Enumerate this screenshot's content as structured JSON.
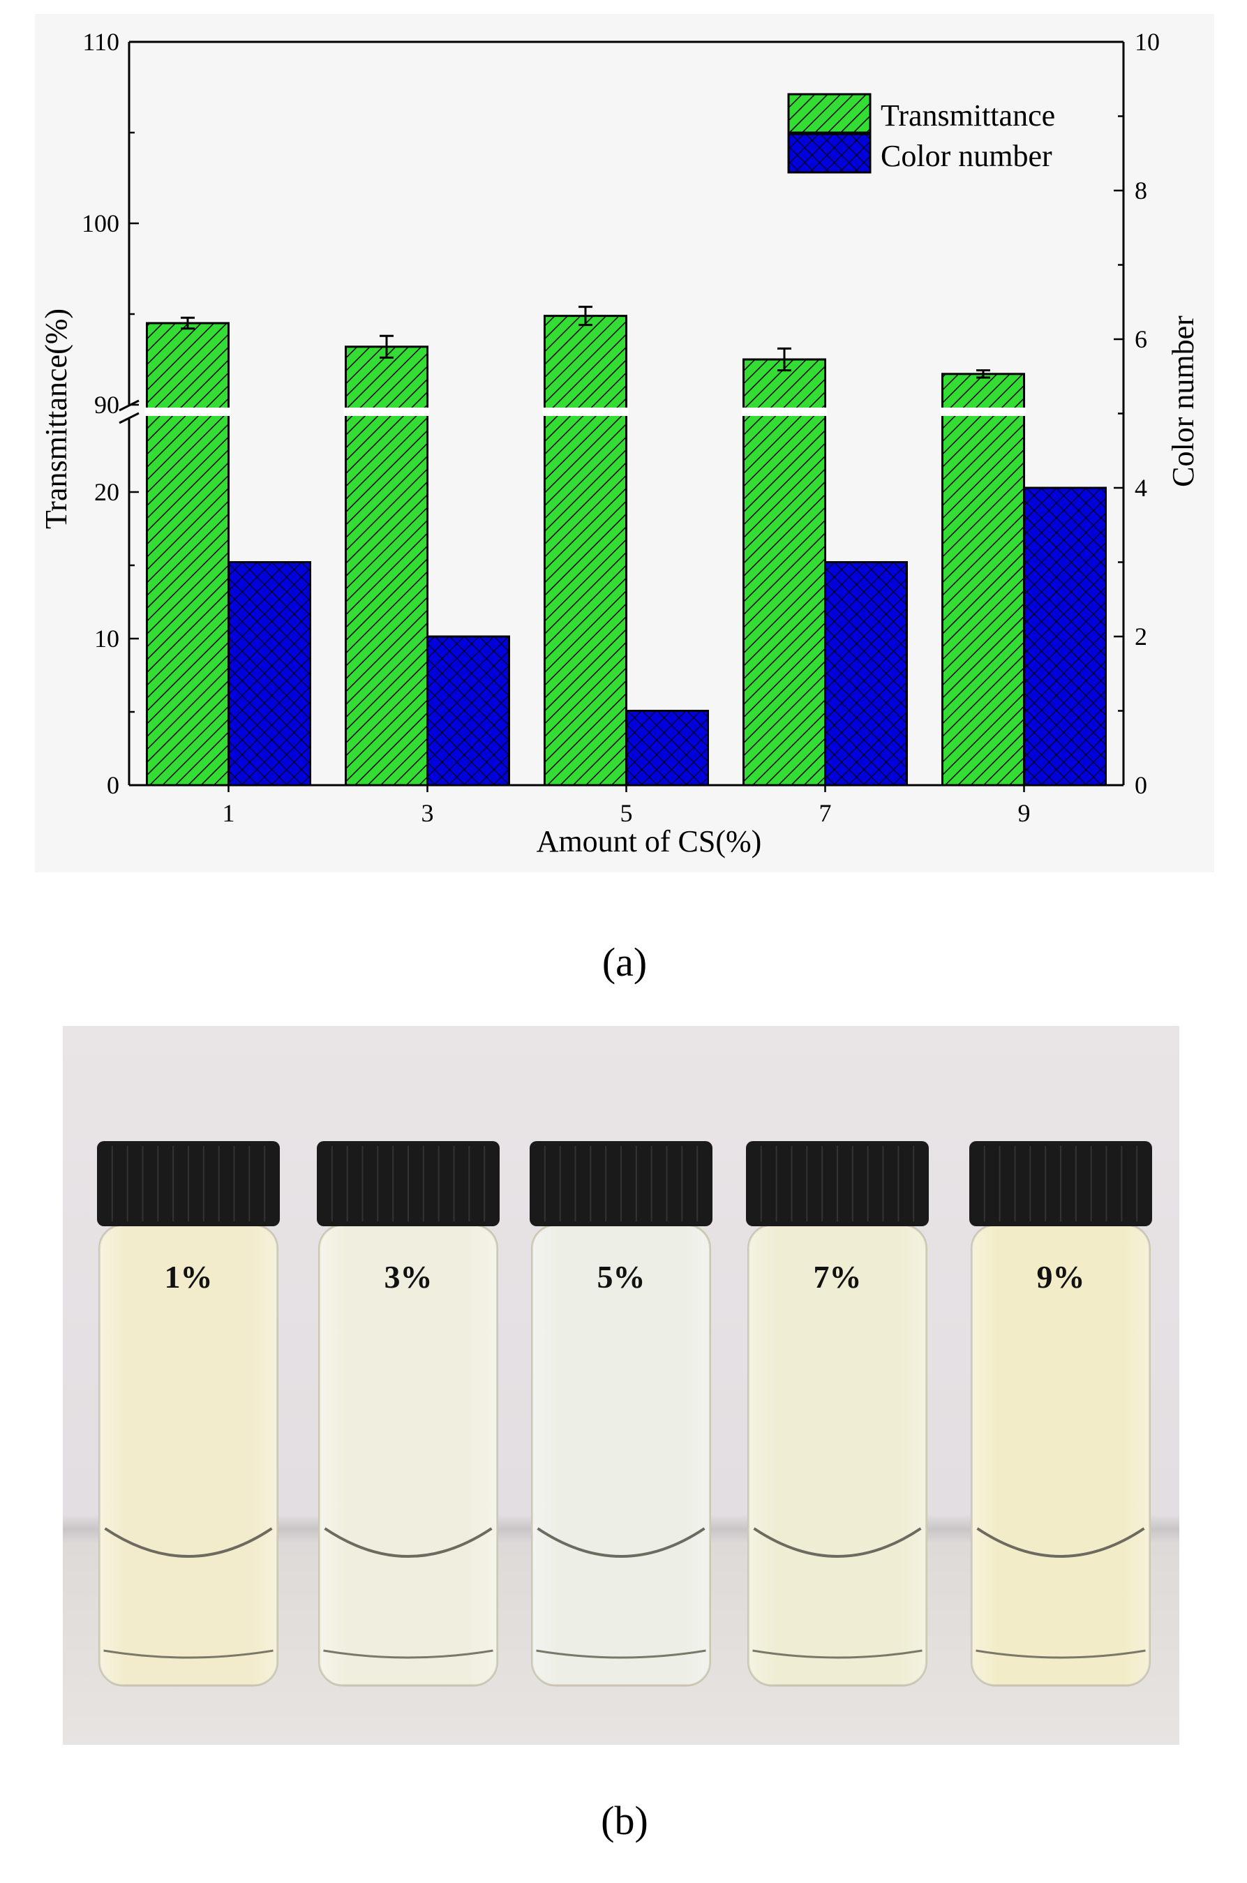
{
  "figure": {
    "panel_a_label": "(a)",
    "panel_b_label": "(b)"
  },
  "chart_data": {
    "type": "bar",
    "xlabel": "Amount of CS(%)",
    "categories": [
      "1",
      "3",
      "5",
      "7",
      "9"
    ],
    "y_left": {
      "label": "Transmittance(%)",
      "broken_axis": true,
      "lower_ylim": [
        0,
        25
      ],
      "upper_ylim": [
        90,
        110
      ],
      "lower_ticks": [
        0,
        10,
        20
      ],
      "upper_ticks": [
        90,
        100,
        110
      ]
    },
    "y_right": {
      "label": "Color number",
      "ylim": [
        0,
        10
      ],
      "ticks": [
        0,
        2,
        4,
        6,
        8,
        10
      ]
    },
    "series": [
      {
        "name": "Transmittance",
        "axis": "left",
        "color": "#33dd33",
        "pattern": "diagonal-hatch",
        "values": [
          94.5,
          93.2,
          94.9,
          92.5,
          91.7
        ],
        "error": [
          0.3,
          0.6,
          0.5,
          0.6,
          0.2
        ]
      },
      {
        "name": "Color number",
        "axis": "right",
        "color": "#0000dd",
        "pattern": "crosshatch",
        "values": [
          3,
          2,
          1,
          3,
          4
        ]
      }
    ],
    "legend_position": "top-right"
  },
  "photo": {
    "vial_labels": [
      "1%",
      "3%",
      "5%",
      "7%",
      "9%"
    ],
    "liquid_colors": [
      "#f2eccc",
      "#f0efdf",
      "#edeee6",
      "#efedd4",
      "#f2ecc8"
    ],
    "cap_color": "#1a1a1a",
    "background_color": "#e6e2e4"
  }
}
